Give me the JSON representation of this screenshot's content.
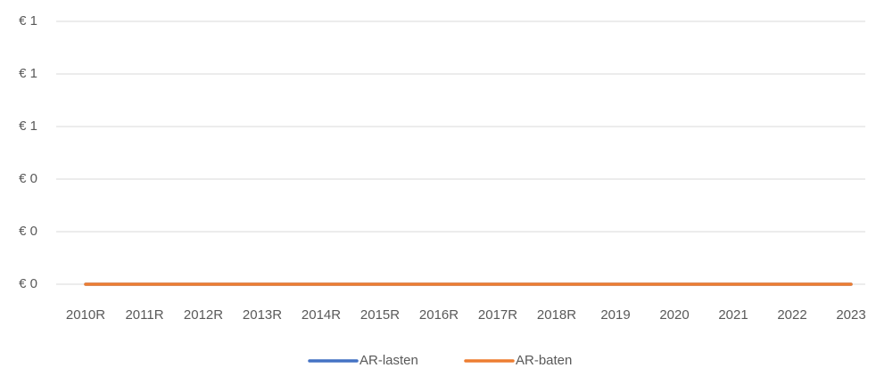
{
  "chart_data": {
    "type": "line",
    "categories": [
      "2010R",
      "2011R",
      "2012R",
      "2013R",
      "2014R",
      "2015R",
      "2016R",
      "2017R",
      "2018R",
      "2019",
      "2020",
      "2021",
      "2022",
      "2023"
    ],
    "series": [
      {
        "name": "AR-lasten",
        "color": "#4472c4",
        "values": [
          0,
          0,
          0,
          0,
          0,
          0,
          0,
          0,
          0,
          0,
          0,
          0,
          0,
          0
        ]
      },
      {
        "name": "AR-baten",
        "color": "#ed7d31",
        "values": [
          0,
          0,
          0,
          0,
          0,
          0,
          0,
          0,
          0,
          0,
          0,
          0,
          0,
          0
        ]
      }
    ],
    "ylim": [
      0,
      1
    ],
    "yticks": [
      {
        "value": 0,
        "label": "€ 0"
      },
      {
        "value": 0.2,
        "label": "€ 0"
      },
      {
        "value": 0.4,
        "label": "€ 0"
      },
      {
        "value": 0.6,
        "label": "€ 1"
      },
      {
        "value": 0.8,
        "label": "€ 1"
      },
      {
        "value": 1,
        "label": "€ 1"
      }
    ],
    "grid": true,
    "legend": "bottom"
  }
}
